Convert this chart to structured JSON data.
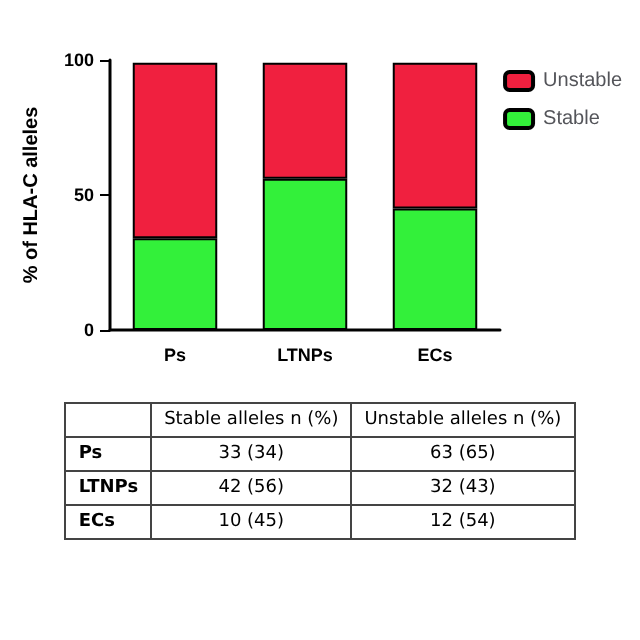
{
  "chart_data": {
    "type": "bar",
    "stacked": true,
    "ylabel": "% of HLA-C alleles",
    "categories": [
      "Ps",
      "LTNPs",
      "ECs"
    ],
    "series": [
      {
        "name": "Stable",
        "color": "#33f03a",
        "values": [
          34,
          56,
          45
        ]
      },
      {
        "name": "Unstable",
        "color": "#f0203f",
        "values": [
          65,
          43,
          54
        ]
      }
    ],
    "ylim": [
      0,
      100
    ],
    "yticks": [
      0,
      50,
      100
    ],
    "grid": false,
    "legend": "right",
    "annotations": [
      "Stable alleles n (%)",
      "Unstable alleles n (%)",
      "33 (34)",
      "63 (65)",
      "42 (56)",
      "32 (43)",
      "10 (45)",
      "12 (54)"
    ]
  }
}
